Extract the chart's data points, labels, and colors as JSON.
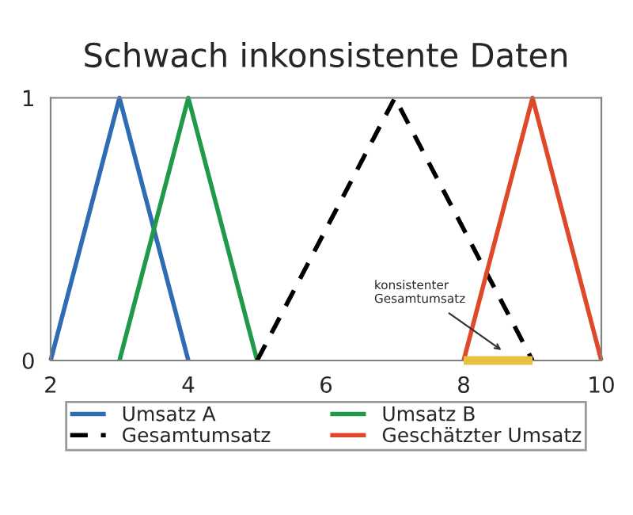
{
  "chart_data": {
    "type": "line",
    "title": "Schwach inkonsistente Daten",
    "xlim": [
      2,
      10
    ],
    "xticks": [
      2,
      4,
      6,
      8,
      10
    ],
    "ylim": [
      0,
      1
    ],
    "yticks": [
      0,
      1
    ],
    "grid": false,
    "legend": "bottom",
    "series": [
      {
        "name": "Umsatz A",
        "color": "#2e6db4",
        "x": [
          2,
          3,
          4
        ],
        "values": [
          0,
          1,
          0
        ],
        "line_style": "solid"
      },
      {
        "name": "Umsatz B",
        "color": "#1f9a48",
        "x": [
          3,
          4,
          5
        ],
        "values": [
          0,
          1,
          0
        ],
        "line_style": "solid"
      },
      {
        "name": "Gesamtumsatz",
        "color": "#000000",
        "x": [
          5,
          7,
          9
        ],
        "values": [
          0,
          1,
          0
        ],
        "line_style": "dashed"
      },
      {
        "name": "Geschätzter Umsatz",
        "color": "#e0482a",
        "x": [
          8,
          9,
          10
        ],
        "values": [
          0,
          1,
          0
        ],
        "line_style": "solid"
      },
      {
        "color": "#e8c040",
        "x": [
          8,
          9
        ],
        "values": [
          0,
          0
        ],
        "line_style": "solid"
      }
    ],
    "annotations": [
      {
        "text": "konsistenter\nGesamtumsatz",
        "x": 8.6,
        "y": 0.03
      }
    ]
  }
}
